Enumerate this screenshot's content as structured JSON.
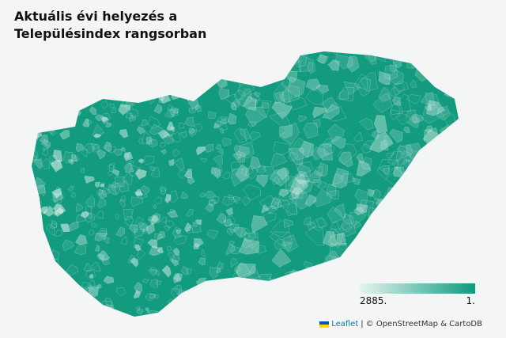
{
  "header": {
    "title": "Aktuális évi helyezés a Településindex rangsorban"
  },
  "map": {
    "color": "#139b80",
    "light_color": "#dff1ec"
  },
  "legend": {
    "low_label": "2885.",
    "high_label": "1.",
    "colors": [
      "#e6f4f0",
      "#0e9a7e"
    ]
  },
  "attribution": {
    "leaflet": "Leaflet",
    "separator": "|",
    "credits": "© OpenStreetMap & CartoDB"
  }
}
